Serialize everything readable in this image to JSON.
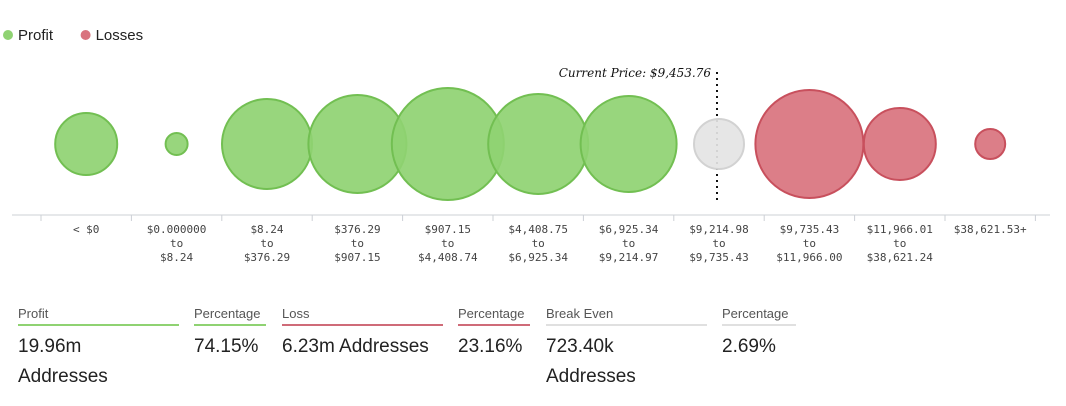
{
  "chart_data": {
    "type": "bubble",
    "legend": [
      {
        "label": "Profit",
        "color": "#8fd272"
      },
      {
        "label": "Losses",
        "color": "#d9737e"
      }
    ],
    "legend_position": "top-left",
    "categories": [
      [
        "< $0"
      ],
      [
        "$0.000000",
        "to",
        "$8.24"
      ],
      [
        "$8.24",
        "to",
        "$376.29"
      ],
      [
        "$376.29",
        "to",
        "$907.15"
      ],
      [
        "$907.15",
        "to",
        "$4,408.74"
      ],
      [
        "$4,408.75",
        "to",
        "$6,925.34"
      ],
      [
        "$6,925.34",
        "to",
        "$9,214.97"
      ],
      [
        "$9,214.98",
        "to",
        "$9,735.43"
      ],
      [
        "$9,735.43",
        "to",
        "$11,966.00"
      ],
      [
        "$11,966.01",
        "to",
        "$38,621.24"
      ],
      [
        "$38,621.53+"
      ]
    ],
    "bubbles": [
      {
        "size": 31,
        "status": "profit"
      },
      {
        "size": 11,
        "status": "profit"
      },
      {
        "size": 45,
        "status": "profit"
      },
      {
        "size": 49,
        "status": "profit"
      },
      {
        "size": 56,
        "status": "profit"
      },
      {
        "size": 50,
        "status": "profit"
      },
      {
        "size": 48,
        "status": "profit"
      },
      {
        "size": 25,
        "status": "even"
      },
      {
        "size": 54,
        "status": "loss"
      },
      {
        "size": 36,
        "status": "loss"
      },
      {
        "size": 15,
        "status": "loss"
      }
    ],
    "current_price_label": "Current Price: $9,453.76",
    "current_price_index": 7,
    "colors": {
      "profit": "#8fd272",
      "profit_stroke": "#72bf52",
      "loss": "#d9737e",
      "loss_stroke": "#c8505d",
      "even": "#e4e4e4",
      "even_stroke": "#d2d2d2"
    }
  },
  "stats": [
    {
      "label": "Profit",
      "value": "19.96m Addresses",
      "kind": "profit"
    },
    {
      "label": "Percentage",
      "value": "74.15%",
      "kind": "profit"
    },
    {
      "label": "Loss",
      "value": "6.23m Addresses",
      "kind": "loss"
    },
    {
      "label": "Percentage",
      "value": "23.16%",
      "kind": "loss"
    },
    {
      "label": "Break Even",
      "value": "723.40k Addresses",
      "kind": "even"
    },
    {
      "label": "Percentage",
      "value": "2.69%",
      "kind": "even"
    }
  ]
}
